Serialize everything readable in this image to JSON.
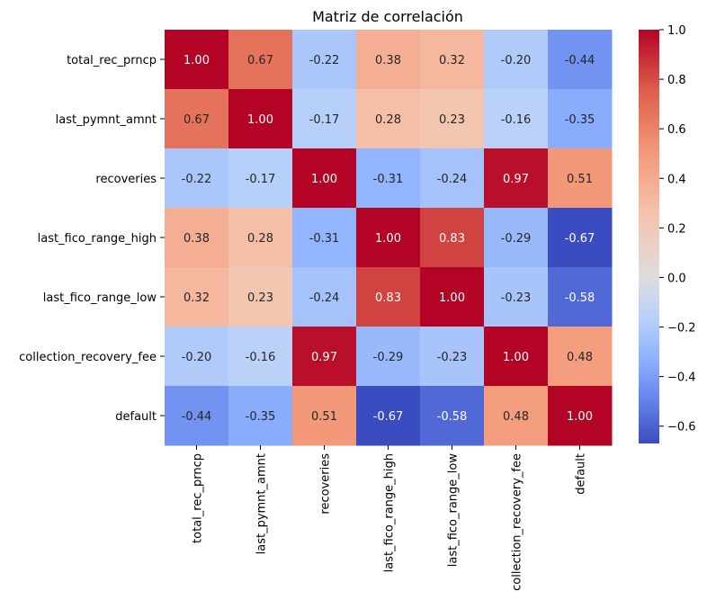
{
  "chart_data": {
    "type": "heatmap",
    "title": "Matriz de correlación",
    "xlabel": "",
    "ylabel": "",
    "row_labels": [
      "total_rec_prncp",
      "last_pymnt_amnt",
      "recoveries",
      "last_fico_range_high",
      "last_fico_range_low",
      "collection_recovery_fee",
      "default"
    ],
    "col_labels": [
      "total_rec_prncp",
      "last_pymnt_amnt",
      "recoveries",
      "last_fico_range_high",
      "last_fico_range_low",
      "collection_recovery_fee",
      "default"
    ],
    "values": [
      [
        1.0,
        0.67,
        -0.22,
        0.38,
        0.32,
        -0.2,
        -0.44
      ],
      [
        0.67,
        1.0,
        -0.17,
        0.28,
        0.23,
        -0.16,
        -0.35
      ],
      [
        -0.22,
        -0.17,
        1.0,
        -0.31,
        -0.24,
        0.97,
        0.51
      ],
      [
        0.38,
        0.28,
        -0.31,
        1.0,
        0.83,
        -0.29,
        -0.67
      ],
      [
        0.32,
        0.23,
        -0.24,
        0.83,
        1.0,
        -0.23,
        -0.58
      ],
      [
        -0.2,
        -0.16,
        0.97,
        -0.29,
        -0.23,
        1.0,
        0.48
      ],
      [
        -0.44,
        -0.35,
        0.51,
        -0.67,
        -0.58,
        0.48,
        1.0
      ]
    ],
    "value_format": "0.00",
    "colormap": "coolwarm",
    "colorbar": {
      "range": [
        -0.67,
        1.0
      ],
      "center": 0,
      "ticks": [
        -0.6,
        -0.4,
        -0.2,
        0.0,
        0.2,
        0.4,
        0.6,
        0.8,
        1.0
      ],
      "tick_labels": [
        "−0.6",
        "−0.4",
        "−0.2",
        "0.0",
        "0.2",
        "0.4",
        "0.6",
        "0.8",
        "1.0"
      ]
    },
    "legend_placement": "right"
  }
}
